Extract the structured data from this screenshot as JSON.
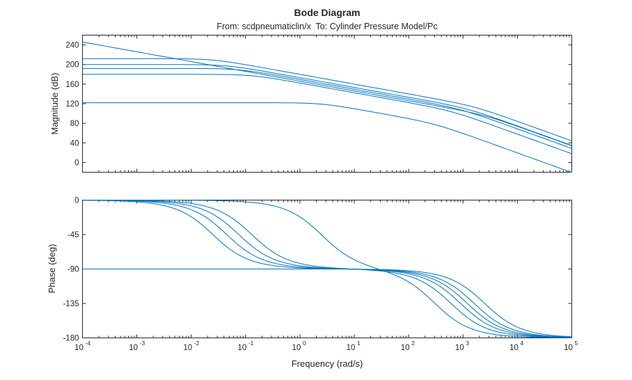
{
  "chart_data": {
    "type": "line",
    "title": "Bode Diagram",
    "subtitle": "From: scdpneumaticlin/x  To: Cylinder Pressure Model/Pc",
    "xlabel": "Frequency (rad/s)",
    "xscale": "log",
    "xlim": [
      0.0001,
      100000
    ],
    "x_ticks": [
      {
        "value": 0.0001,
        "exp": "-4"
      },
      {
        "value": 0.001,
        "exp": "-3"
      },
      {
        "value": 0.01,
        "exp": "-2"
      },
      {
        "value": 0.1,
        "exp": "-1"
      },
      {
        "value": 1,
        "exp": "0"
      },
      {
        "value": 10,
        "exp": "1"
      },
      {
        "value": 100,
        "exp": "2"
      },
      {
        "value": 1000,
        "exp": "3"
      },
      {
        "value": 10000,
        "exp": "4"
      },
      {
        "value": 100000,
        "exp": "5"
      }
    ],
    "line_color": "#0072bd",
    "grid": false,
    "magnitude": {
      "ylabel": "Magnitude (dB)",
      "ylim": [
        -20,
        260
      ],
      "yticks": [
        0,
        40,
        80,
        120,
        160,
        200,
        240
      ],
      "ytick_labels": [
        "0",
        "40",
        "80",
        "120",
        "160",
        "200",
        "240"
      ]
    },
    "phase": {
      "ylabel": "Phase (deg)",
      "ylim": [
        -180,
        0
      ],
      "yticks": [
        0,
        -45,
        -90,
        -135,
        -180
      ],
      "ytick_labels": [
        "0",
        "-45",
        "-90",
        "-135",
        "-180"
      ]
    },
    "systems": [
      {
        "gain_db": 246,
        "low_pole": null,
        "high_pole": 2500
      },
      {
        "gain_db": 212,
        "low_pole": 0.025,
        "high_pole": 1600
      },
      {
        "gain_db": 200,
        "low_pole": 0.045,
        "high_pole": 1200
      },
      {
        "gain_db": 192,
        "low_pole": 0.075,
        "high_pole": 900
      },
      {
        "gain_db": 180,
        "low_pole": 0.13,
        "high_pole": 600
      },
      {
        "gain_db": 122,
        "low_pole": 2.5,
        "high_pole": 300
      }
    ]
  }
}
